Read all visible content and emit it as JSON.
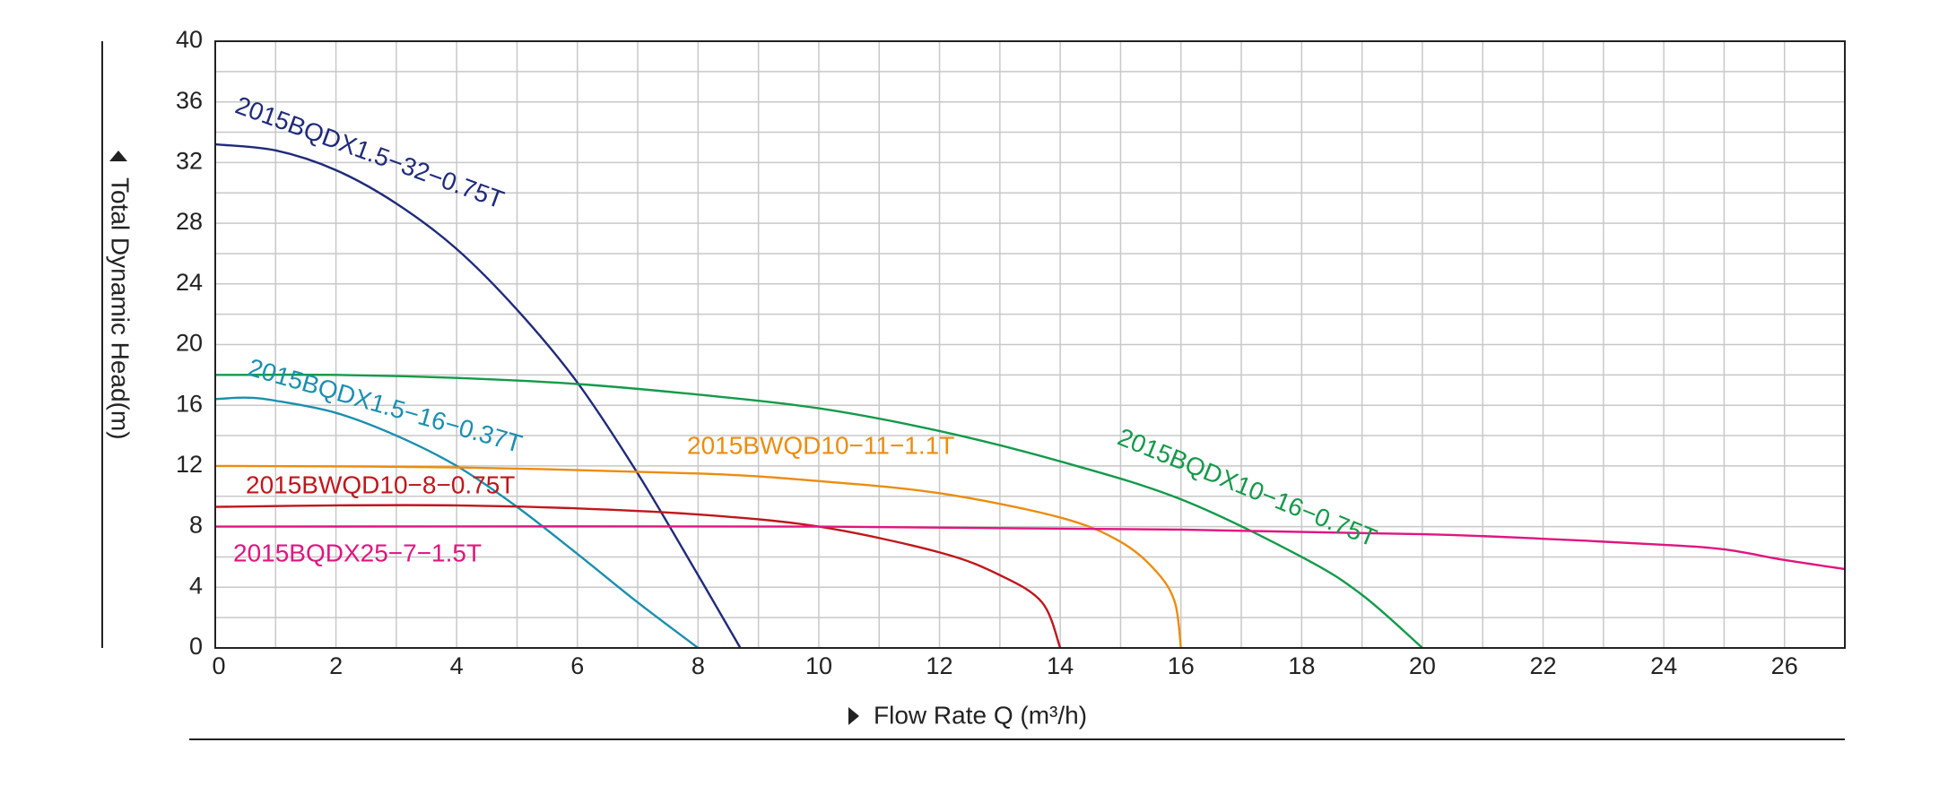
{
  "chart_data": {
    "type": "line",
    "x_label": "Flow Rate Q (m³/h)",
    "y_label": "Total Dynamic Head(m)",
    "xlim": [
      0,
      27
    ],
    "xticks": [
      0,
      2,
      4,
      6,
      8,
      10,
      12,
      14,
      16,
      18,
      20,
      22,
      24,
      26
    ],
    "ylim": [
      0,
      40
    ],
    "yticks": [
      0,
      4,
      8,
      12,
      16,
      20,
      24,
      28,
      32,
      36,
      40
    ],
    "grid": true,
    "series": [
      {
        "name": "2015BQDX1.5−32−0.75T",
        "color": "#1f2a7a",
        "x": [
          0,
          1,
          2,
          3,
          4,
          5,
          6,
          7,
          8,
          8.7
        ],
        "values": [
          33.2,
          32.8,
          31.5,
          29.3,
          26.3,
          22.3,
          17.5,
          11.5,
          4.8,
          0
        ]
      },
      {
        "name": "2015BQDX1.5−16−0.37T",
        "color": "#1a8fb0",
        "x": [
          0,
          0.5,
          1,
          2,
          3,
          4,
          5,
          6,
          7,
          8
        ],
        "values": [
          16.4,
          16.5,
          16.3,
          15.5,
          14,
          12,
          9.3,
          6.2,
          3,
          0
        ]
      },
      {
        "name": "2015BWQD10−8−0.75T",
        "color": "#c0161c",
        "x": [
          0,
          2,
          4,
          6,
          8,
          10,
          12,
          13,
          13.7,
          14
        ],
        "values": [
          9.3,
          9.4,
          9.4,
          9.2,
          8.8,
          8,
          6.3,
          4.8,
          3,
          0
        ]
      },
      {
        "name": "2015BWQD10−11−1.1T",
        "color": "#ec8c0e",
        "x": [
          0,
          4,
          8,
          10,
          12,
          14,
          15,
          15.6,
          15.9,
          16
        ],
        "values": [
          12,
          11.9,
          11.5,
          11,
          10.2,
          8.6,
          7,
          5,
          3,
          0
        ]
      },
      {
        "name": "2015BQDX10−16−0.75T",
        "color": "#139a4a",
        "x": [
          0,
          2,
          4,
          6,
          8,
          10,
          12,
          14,
          16,
          18,
          19,
          20
        ],
        "values": [
          18,
          18,
          17.8,
          17.4,
          16.7,
          15.8,
          14.3,
          12.3,
          9.8,
          6,
          3.5,
          0
        ]
      },
      {
        "name": "2015BQDX25−7−1.5T",
        "color": "#e0157f",
        "x": [
          0,
          10,
          16,
          20,
          22,
          24,
          25,
          26,
          27
        ],
        "values": [
          8,
          8,
          7.8,
          7.5,
          7.2,
          6.8,
          6.5,
          5.8,
          5.2
        ]
      }
    ]
  }
}
